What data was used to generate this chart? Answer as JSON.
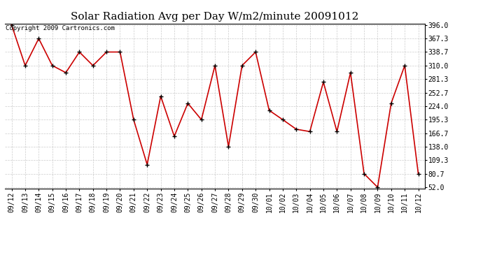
{
  "title": "Solar Radiation Avg per Day W/m2/minute 20091012",
  "copyright_text": "Copyright 2009 Cartronics.com",
  "x_labels": [
    "09/12",
    "09/13",
    "09/14",
    "09/15",
    "09/16",
    "09/17",
    "09/18",
    "09/19",
    "09/20",
    "09/21",
    "09/22",
    "09/23",
    "09/24",
    "09/25",
    "09/26",
    "09/27",
    "09/28",
    "09/29",
    "09/30",
    "10/01",
    "10/02",
    "10/03",
    "10/04",
    "10/05",
    "10/06",
    "10/07",
    "10/08",
    "10/09",
    "10/10",
    "10/11",
    "10/12"
  ],
  "y_values": [
    396.0,
    310.0,
    367.3,
    310.0,
    295.0,
    338.7,
    310.0,
    338.7,
    338.7,
    195.3,
    100.0,
    245.0,
    160.0,
    230.0,
    195.3,
    310.0,
    138.0,
    310.0,
    338.7,
    215.0,
    195.3,
    175.0,
    170.0,
    275.0,
    170.0,
    295.0,
    80.7,
    52.0,
    230.0,
    310.0,
    80.7
  ],
  "y_min": 52.0,
  "y_max": 396.0,
  "y_ticks": [
    52.0,
    80.7,
    109.3,
    138.0,
    166.7,
    195.3,
    224.0,
    252.7,
    281.3,
    310.0,
    338.7,
    367.3,
    396.0
  ],
  "line_color": "#cc0000",
  "marker": "+",
  "marker_color": "#000000",
  "bg_color": "#ffffff",
  "grid_color": "#aaaaaa",
  "title_fontsize": 11,
  "copyright_fontsize": 6.5,
  "tick_fontsize": 7,
  "ytick_fontsize": 7
}
